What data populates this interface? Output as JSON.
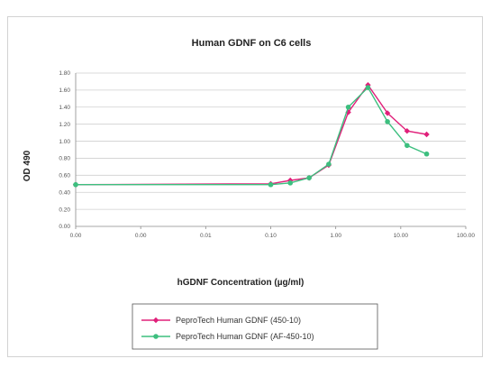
{
  "chart_data": {
    "type": "line",
    "title": "Human GDNF on C6 cells",
    "xlabel": "hGDNF Concentration (µg/ml)",
    "ylabel": "OD 490",
    "x_scale": "log",
    "x_ticks": [
      "0.00",
      "0.00",
      "0.01",
      "0.10",
      "1.00",
      "10.00",
      "100.00"
    ],
    "y_ticks": [
      "0.00",
      "0.20",
      "0.40",
      "0.60",
      "0.80",
      "1.00",
      "1.20",
      "1.40",
      "1.60",
      "1.80"
    ],
    "ylim": [
      0,
      1.8
    ],
    "grid": true,
    "legend_position": "bottom",
    "series": [
      {
        "name": "PeproTech Human GDNF (450-10)",
        "color": "#e0207a",
        "marker": "diamond",
        "x": [
          0.0001,
          0.1,
          0.2,
          0.39,
          0.78,
          1.56,
          3.13,
          6.25,
          12.5,
          25
        ],
        "y": [
          0.49,
          0.5,
          0.54,
          0.57,
          0.72,
          1.34,
          1.66,
          1.33,
          1.12,
          1.08
        ]
      },
      {
        "name": "PeproTech Human GDNF (AF-450-10)",
        "color": "#3dbf7f",
        "marker": "circle",
        "x": [
          0.0001,
          0.1,
          0.2,
          0.39,
          0.78,
          1.56,
          3.13,
          6.25,
          12.5,
          25
        ],
        "y": [
          0.49,
          0.49,
          0.51,
          0.57,
          0.73,
          1.4,
          1.63,
          1.23,
          0.95,
          0.85
        ]
      }
    ]
  }
}
